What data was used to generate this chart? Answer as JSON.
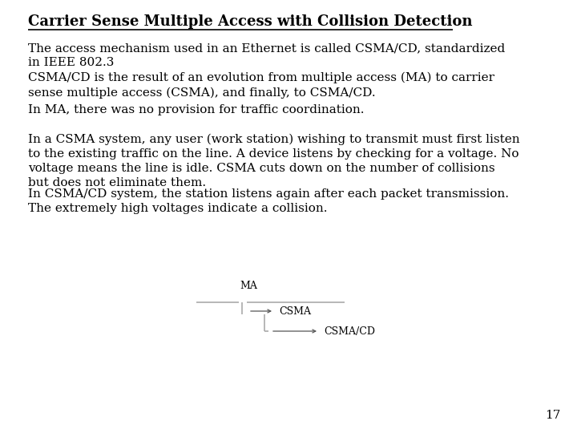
{
  "title": "Carrier Sense Multiple Access with Collision Detection",
  "background_color": "#ffffff",
  "text_color": "#000000",
  "page_number": "17",
  "paragraphs": [
    "The access mechanism used in an Ethernet is called CSMA/CD, standardized\nin IEEE 802.3",
    "CSMA/CD is the result of an evolution from multiple access (MA) to carrier\nsense multiple access (CSMA), and finally, to CSMA/CD.",
    "In MA, there was no provision for traffic coordination.",
    "In a CSMA system, any user (work station) wishing to transmit must first listen\nto the existing traffic on the line. A device listens by checking for a voltage. No\nvoltage means the line is idle. CSMA cuts down on the number of collisions\nbut does not eliminate them.",
    "In CSMA/CD system, the station listens again after each packet transmission.\nThe extremely high voltages indicate a collision."
  ],
  "title_fontsize": 13,
  "body_fontsize": 11,
  "diagram": {
    "ma_label": "MA",
    "csma_label": "CSMA",
    "csmacd_label": "CSMA/CD",
    "line_color": "#aaaaaa",
    "line_width": 1.2,
    "arrow_color": "#555555"
  }
}
